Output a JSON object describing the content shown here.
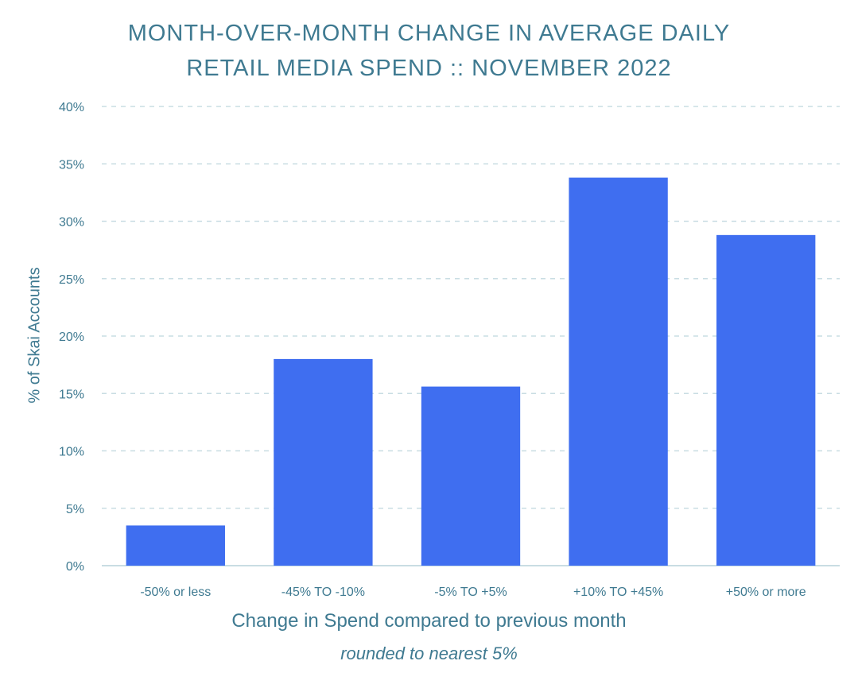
{
  "chart_data": {
    "type": "bar",
    "title_line1": "MONTH-OVER-MONTH CHANGE IN AVERAGE DAILY",
    "title_line2": "RETAIL MEDIA SPEND :: NOVEMBER 2022",
    "ylabel": "% of Skai Accounts",
    "xlabel": "Change in Spend compared to previous month",
    "xlabel_sub": "rounded to nearest 5%",
    "categories": [
      "-50% or less",
      "-45% TO -10%",
      "-5% TO +5%",
      "+10% TO +45%",
      "+50% or more"
    ],
    "values": [
      3.5,
      18.0,
      15.6,
      33.8,
      28.8
    ],
    "ylim": [
      0,
      40
    ],
    "yticks": [
      "0%",
      "5%",
      "10%",
      "15%",
      "20%",
      "25%",
      "30%",
      "35%",
      "40%"
    ],
    "grid": true,
    "bar_color": "#3f6ef0",
    "text_color": "#3f7a91",
    "grid_color": "#c9dde3"
  }
}
